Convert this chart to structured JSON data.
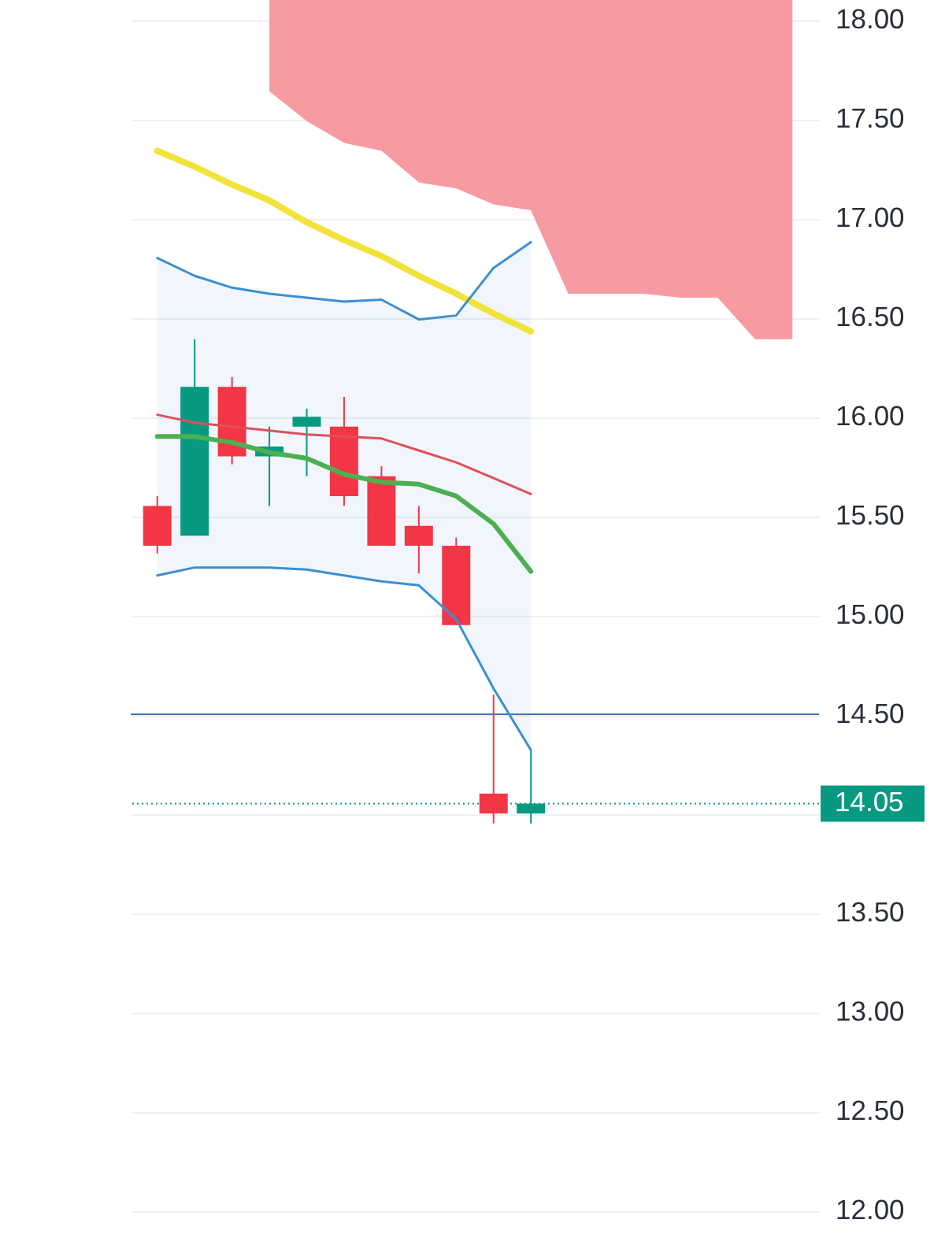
{
  "chart_data": {
    "type": "candlestick",
    "categories": [
      null,
      null,
      null,
      null,
      null,
      null,
      null,
      null,
      null,
      null,
      null,
      null,
      null,
      null,
      null,
      null,
      null,
      null
    ],
    "ohlc": [
      [
        15.55,
        15.6,
        15.31,
        15.35
      ],
      [
        15.4,
        16.39,
        15.4,
        16.15
      ],
      [
        16.15,
        16.2,
        15.76,
        15.8
      ],
      [
        15.8,
        15.95,
        15.55,
        15.85
      ],
      [
        15.95,
        16.04,
        15.7,
        16.0
      ],
      [
        15.95,
        16.1,
        15.55,
        15.6
      ],
      [
        15.7,
        15.75,
        15.35,
        15.35
      ],
      [
        15.45,
        15.55,
        15.21,
        15.35
      ],
      [
        15.35,
        15.39,
        14.95,
        14.95
      ],
      [
        14.1,
        14.6,
        13.95,
        14.0
      ],
      [
        14.0,
        14.32,
        13.95,
        14.05
      ],
      null,
      null,
      null,
      null,
      null,
      null,
      null
    ],
    "colors": [
      "#f23645",
      "#089981",
      "#f23645",
      "#089981",
      "#089981",
      "#f23645",
      "#f23645",
      "#f23645",
      "#f23645",
      "#f23645",
      "#089981",
      null,
      null,
      null,
      null,
      null,
      null,
      null
    ],
    "series": [
      {
        "type": "area",
        "color": "#f79ba3",
        "values": [
          null,
          null,
          null,
          null,
          null,
          null,
          null,
          null,
          null,
          null,
          null,
          null,
          null,
          null,
          null,
          null,
          null,
          null
        ],
        "lower": [
          null,
          null,
          null,
          17.64,
          17.49,
          17.38,
          17.34,
          17.18,
          17.15,
          17.07,
          17.04,
          16.62,
          16.62,
          16.62,
          16.6,
          16.6,
          16.39,
          16.39
        ],
        "upper": [
          null,
          null,
          null,
          18.1,
          18.1,
          18.1,
          18.1,
          18.1,
          18.1,
          18.1,
          18.1,
          18.1,
          18.1,
          18.1,
          18.1,
          18.1,
          18.1,
          18.1
        ]
      },
      {
        "type": "line",
        "color": "#f2e33a",
        "values": [
          17.34,
          17.26,
          17.17,
          17.09,
          16.98,
          16.89,
          16.81,
          16.71,
          16.62,
          16.52,
          16.43,
          null,
          null,
          null,
          null,
          null,
          null,
          null
        ]
      },
      {
        "type": "line",
        "color": "#3b8fd0",
        "values": [
          16.8,
          16.71,
          16.65,
          16.62,
          16.6,
          16.58,
          16.59,
          16.49,
          16.51,
          16.75,
          16.88,
          null,
          null,
          null,
          null,
          null,
          null,
          null
        ],
        "lower": [
          15.2,
          15.24,
          15.24,
          15.24,
          15.23,
          15.2,
          15.17,
          15.15,
          14.98,
          14.63,
          14.32,
          null,
          null,
          null,
          null,
          null,
          null,
          null
        ],
        "upper": [
          16.8,
          16.71,
          16.65,
          16.62,
          16.6,
          16.58,
          16.59,
          16.49,
          16.51,
          16.75,
          16.88,
          null,
          null,
          null,
          null,
          null,
          null,
          null
        ]
      },
      {
        "type": "line",
        "color": "#3b8fd0",
        "values": [
          15.2,
          15.24,
          15.24,
          15.24,
          15.23,
          15.2,
          15.17,
          15.15,
          14.98,
          14.63,
          14.32,
          null,
          null,
          null,
          null,
          null,
          null,
          null
        ]
      },
      {
        "type": "line",
        "color": "#e0505a",
        "values": [
          16.01,
          15.97,
          15.95,
          15.93,
          15.91,
          15.9,
          15.89,
          15.83,
          15.77,
          15.69,
          15.61,
          null,
          null,
          null,
          null,
          null,
          null,
          null
        ]
      },
      {
        "type": "line",
        "color": "#4caf50",
        "values": [
          15.9,
          15.9,
          15.87,
          15.82,
          15.79,
          15.71,
          15.67,
          15.66,
          15.6,
          15.46,
          15.22,
          null,
          null,
          null,
          null,
          null,
          null,
          null
        ]
      }
    ],
    "ylim": [
      11.75,
      18.1
    ],
    "yticks": [
      {
        "value": 12,
        "label": "12.00"
      },
      {
        "value": 12.5,
        "label": "12.50"
      },
      {
        "value": 13,
        "label": "13.00"
      },
      {
        "value": 13.5,
        "label": "13.50"
      },
      {
        "value": 14,
        "label": null
      },
      {
        "value": 14.5,
        "label": "14.50"
      },
      {
        "value": 15,
        "label": "15.00"
      },
      {
        "value": 15.5,
        "label": "15.50"
      },
      {
        "value": 16,
        "label": "16.00"
      },
      {
        "value": 16.5,
        "label": "16.50"
      },
      {
        "value": 17,
        "label": "17.00"
      },
      {
        "value": 17.5,
        "label": "17.50"
      },
      {
        "value": 18,
        "label": "18.00"
      }
    ],
    "grid": "y",
    "tick_labels": "y",
    "ref_lines": [
      {
        "axis": "y",
        "value": 14.5,
        "color": "#4a6fb5"
      },
      {
        "axis": "y",
        "value": 14.05,
        "label": "14.05",
        "color": "#089981",
        "line_style": "dotted"
      }
    ]
  }
}
